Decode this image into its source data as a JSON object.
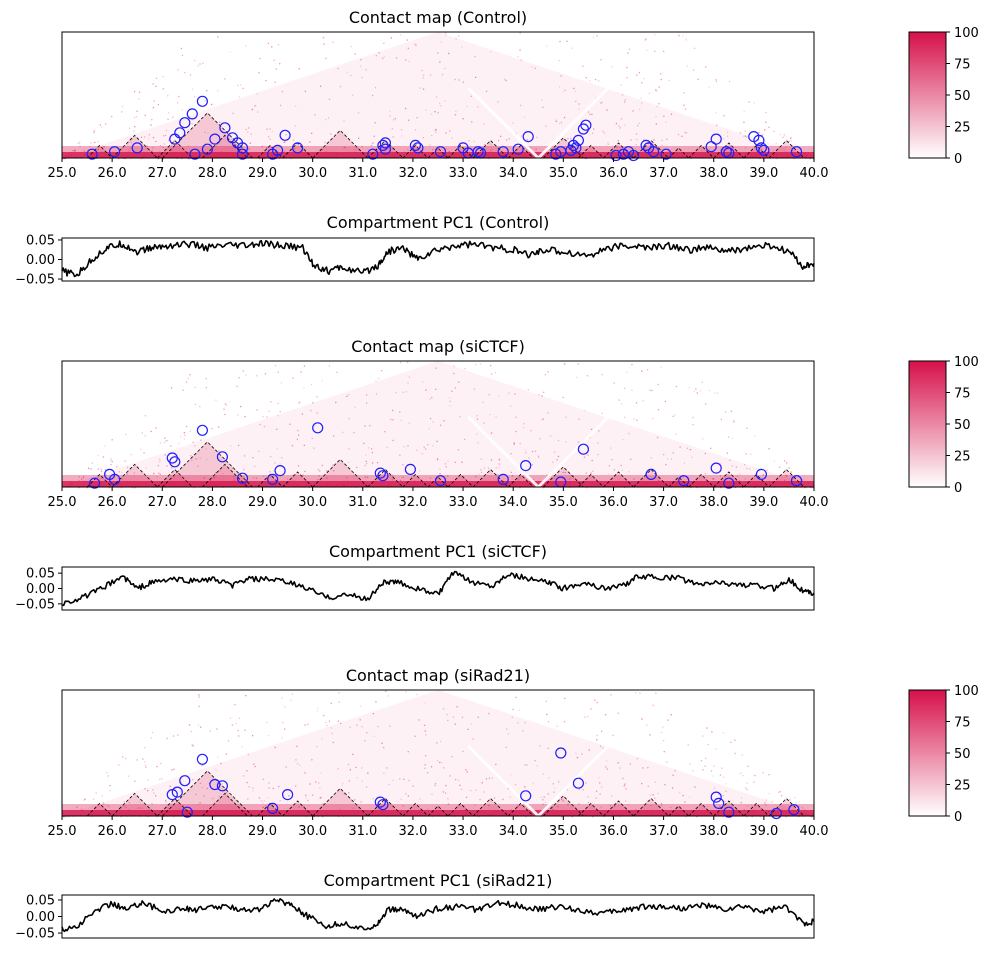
{
  "chart_data": [
    {
      "type": "heatmap",
      "title": "Contact map (Control)",
      "x_range": [
        25.0,
        40.0
      ],
      "x_ticks": [
        "25.0",
        "26.0",
        "27.0",
        "28.0",
        "29.0",
        "30.0",
        "31.0",
        "32.0",
        "33.0",
        "34.0",
        "35.0",
        "36.0",
        "37.0",
        "38.0",
        "39.0",
        "40.0"
      ],
      "colorbar": {
        "range": [
          0,
          100
        ],
        "ticks": [
          "0",
          "25",
          "50",
          "75",
          "100"
        ],
        "colors": [
          "#ffffff",
          "#d6104a"
        ]
      },
      "domains": [
        [
          25.5,
          26.0
        ],
        [
          26.0,
          26.9
        ],
        [
          26.9,
          27.6
        ],
        [
          27.0,
          28.8
        ],
        [
          27.8,
          28.7
        ],
        [
          28.9,
          29.4
        ],
        [
          29.4,
          30.0
        ],
        [
          30.0,
          31.1
        ],
        [
          31.1,
          31.8
        ],
        [
          31.8,
          32.3
        ],
        [
          32.3,
          32.7
        ],
        [
          32.7,
          33.2
        ],
        [
          33.2,
          33.9
        ],
        [
          33.9,
          34.4
        ],
        [
          34.6,
          35.4
        ],
        [
          35.3,
          35.8
        ],
        [
          35.8,
          36.4
        ],
        [
          36.4,
          37.1
        ],
        [
          37.1,
          37.5
        ],
        [
          37.5,
          38.0
        ],
        [
          38.0,
          38.6
        ],
        [
          38.6,
          39.1
        ],
        [
          39.1,
          39.8
        ]
      ],
      "loop_calls": [
        [
          25.6,
          0.03
        ],
        [
          26.05,
          0.05
        ],
        [
          26.5,
          0.08
        ],
        [
          27.25,
          0.15
        ],
        [
          27.35,
          0.2
        ],
        [
          27.45,
          0.28
        ],
        [
          27.6,
          0.35
        ],
        [
          27.8,
          0.45
        ],
        [
          27.65,
          0.03
        ],
        [
          27.9,
          0.07
        ],
        [
          28.05,
          0.15
        ],
        [
          28.25,
          0.24
        ],
        [
          28.4,
          0.16
        ],
        [
          28.5,
          0.12
        ],
        [
          28.6,
          0.08
        ],
        [
          28.6,
          0.03
        ],
        [
          29.2,
          0.03
        ],
        [
          29.3,
          0.06
        ],
        [
          29.45,
          0.18
        ],
        [
          29.7,
          0.08
        ],
        [
          31.2,
          0.03
        ],
        [
          31.4,
          0.1
        ],
        [
          31.45,
          0.12
        ],
        [
          31.45,
          0.07
        ],
        [
          32.05,
          0.1
        ],
        [
          32.1,
          0.08
        ],
        [
          32.55,
          0.05
        ],
        [
          33.0,
          0.08
        ],
        [
          33.1,
          0.04
        ],
        [
          33.3,
          0.05
        ],
        [
          33.35,
          0.04
        ],
        [
          33.8,
          0.05
        ],
        [
          34.1,
          0.07
        ],
        [
          34.3,
          0.17
        ],
        [
          34.85,
          0.03
        ],
        [
          34.95,
          0.05
        ],
        [
          35.15,
          0.06
        ],
        [
          35.2,
          0.1
        ],
        [
          35.25,
          0.08
        ],
        [
          35.3,
          0.14
        ],
        [
          35.4,
          0.23
        ],
        [
          35.45,
          0.26
        ],
        [
          36.05,
          0.02
        ],
        [
          36.2,
          0.03
        ],
        [
          36.3,
          0.05
        ],
        [
          36.4,
          0.02
        ],
        [
          36.65,
          0.1
        ],
        [
          36.7,
          0.08
        ],
        [
          36.8,
          0.05
        ],
        [
          37.05,
          0.03
        ],
        [
          37.95,
          0.09
        ],
        [
          38.05,
          0.15
        ],
        [
          38.25,
          0.05
        ],
        [
          38.3,
          0.04
        ],
        [
          38.8,
          0.17
        ],
        [
          38.9,
          0.14
        ],
        [
          38.95,
          0.08
        ],
        [
          39.0,
          0.06
        ],
        [
          39.65,
          0.05
        ]
      ]
    },
    {
      "type": "line",
      "title": "Compartment PC1 (Control)",
      "x_range": [
        25.0,
        40.0
      ],
      "ylim": [
        -0.055,
        0.055
      ],
      "y_ticks": [
        "0.05",
        "0.00",
        "−0.05"
      ],
      "profile_points": [
        [
          25.0,
          -0.03
        ],
        [
          25.3,
          -0.04
        ],
        [
          25.6,
          0.0
        ],
        [
          25.9,
          0.03
        ],
        [
          26.2,
          0.04
        ],
        [
          26.5,
          0.02
        ],
        [
          26.8,
          0.03
        ],
        [
          27.1,
          0.035
        ],
        [
          27.5,
          0.04
        ],
        [
          27.9,
          0.03
        ],
        [
          28.3,
          0.035
        ],
        [
          28.7,
          0.035
        ],
        [
          29.0,
          0.04
        ],
        [
          29.4,
          0.035
        ],
        [
          29.8,
          0.03
        ],
        [
          30.0,
          -0.01
        ],
        [
          30.3,
          -0.03
        ],
        [
          30.6,
          -0.02
        ],
        [
          31.0,
          -0.035
        ],
        [
          31.3,
          -0.015
        ],
        [
          31.5,
          0.02
        ],
        [
          31.8,
          0.03
        ],
        [
          32.1,
          0.0
        ],
        [
          32.4,
          0.02
        ],
        [
          32.8,
          0.035
        ],
        [
          33.2,
          0.04
        ],
        [
          33.6,
          0.03
        ],
        [
          34.0,
          0.025
        ],
        [
          34.3,
          0.01
        ],
        [
          34.6,
          0.025
        ],
        [
          35.0,
          0.02
        ],
        [
          35.5,
          0.01
        ],
        [
          35.9,
          0.03
        ],
        [
          36.3,
          0.035
        ],
        [
          36.7,
          0.03
        ],
        [
          37.1,
          0.035
        ],
        [
          37.5,
          0.025
        ],
        [
          37.9,
          0.03
        ],
        [
          38.3,
          0.02
        ],
        [
          38.7,
          0.03
        ],
        [
          39.1,
          0.035
        ],
        [
          39.5,
          0.02
        ],
        [
          39.8,
          -0.02
        ],
        [
          40.0,
          -0.01
        ]
      ]
    },
    {
      "type": "heatmap",
      "title": "Contact map (siCTCF)",
      "x_range": [
        25.0,
        40.0
      ],
      "x_ticks": [
        "25.0",
        "26.0",
        "27.0",
        "28.0",
        "29.0",
        "30.0",
        "31.0",
        "32.0",
        "33.0",
        "34.0",
        "35.0",
        "36.0",
        "37.0",
        "38.0",
        "39.0",
        "40.0"
      ],
      "colorbar": {
        "range": [
          0,
          100
        ],
        "ticks": [
          "0",
          "25",
          "50",
          "75",
          "100"
        ],
        "colors": [
          "#ffffff",
          "#d6104a"
        ]
      },
      "domains": [
        [
          25.5,
          26.0
        ],
        [
          26.0,
          26.9
        ],
        [
          26.9,
          27.6
        ],
        [
          27.0,
          28.8
        ],
        [
          27.8,
          28.7
        ],
        [
          28.9,
          29.4
        ],
        [
          29.4,
          30.0
        ],
        [
          30.0,
          31.1
        ],
        [
          31.1,
          31.8
        ],
        [
          31.8,
          32.3
        ],
        [
          32.3,
          32.7
        ],
        [
          32.7,
          33.2
        ],
        [
          33.2,
          33.9
        ],
        [
          33.9,
          34.4
        ],
        [
          34.6,
          35.4
        ],
        [
          35.3,
          35.8
        ],
        [
          35.8,
          36.4
        ],
        [
          36.4,
          37.1
        ],
        [
          37.1,
          37.5
        ],
        [
          37.5,
          38.0
        ],
        [
          38.0,
          38.6
        ],
        [
          38.6,
          39.1
        ],
        [
          39.1,
          39.8
        ]
      ],
      "loop_calls": [
        [
          25.65,
          0.03
        ],
        [
          25.95,
          0.1
        ],
        [
          26.05,
          0.06
        ],
        [
          27.2,
          0.23
        ],
        [
          27.25,
          0.2
        ],
        [
          27.8,
          0.45
        ],
        [
          28.2,
          0.24
        ],
        [
          28.6,
          0.07
        ],
        [
          29.2,
          0.06
        ],
        [
          29.35,
          0.13
        ],
        [
          30.1,
          0.47
        ],
        [
          31.35,
          0.11
        ],
        [
          31.4,
          0.09
        ],
        [
          31.95,
          0.14
        ],
        [
          32.55,
          0.05
        ],
        [
          33.8,
          0.06
        ],
        [
          34.25,
          0.17
        ],
        [
          34.95,
          0.04
        ],
        [
          35.4,
          0.3
        ],
        [
          36.75,
          0.1
        ],
        [
          37.4,
          0.05
        ],
        [
          38.05,
          0.15
        ],
        [
          38.3,
          0.03
        ],
        [
          38.95,
          0.1
        ],
        [
          39.65,
          0.05
        ]
      ]
    },
    {
      "type": "line",
      "title": "Compartment PC1 (siCTCF)",
      "x_range": [
        25.0,
        40.0
      ],
      "ylim": [
        -0.07,
        0.07
      ],
      "y_ticks": [
        "0.05",
        "0.00",
        "−0.05"
      ],
      "profile_points": [
        [
          25.0,
          -0.05
        ],
        [
          25.4,
          -0.03
        ],
        [
          25.8,
          0.0
        ],
        [
          26.2,
          0.04
        ],
        [
          26.5,
          0.0
        ],
        [
          26.8,
          0.02
        ],
        [
          27.2,
          0.03
        ],
        [
          27.6,
          0.025
        ],
        [
          28.0,
          0.03
        ],
        [
          28.4,
          0.01
        ],
        [
          28.7,
          0.03
        ],
        [
          29.1,
          0.03
        ],
        [
          29.5,
          0.02
        ],
        [
          29.9,
          0.0
        ],
        [
          30.3,
          -0.03
        ],
        [
          30.7,
          -0.02
        ],
        [
          31.1,
          -0.035
        ],
        [
          31.4,
          0.02
        ],
        [
          31.7,
          0.02
        ],
        [
          32.1,
          0.0
        ],
        [
          32.5,
          -0.02
        ],
        [
          32.8,
          0.05
        ],
        [
          33.2,
          0.02
        ],
        [
          33.6,
          0.01
        ],
        [
          33.9,
          0.05
        ],
        [
          34.3,
          0.03
        ],
        [
          34.7,
          0.02
        ],
        [
          35.0,
          0.0
        ],
        [
          35.4,
          0.02
        ],
        [
          35.8,
          0.0
        ],
        [
          36.2,
          0.01
        ],
        [
          36.5,
          0.04
        ],
        [
          36.9,
          0.035
        ],
        [
          37.3,
          0.035
        ],
        [
          37.7,
          0.01
        ],
        [
          38.0,
          0.02
        ],
        [
          38.4,
          0.015
        ],
        [
          38.8,
          0.01
        ],
        [
          39.2,
          0.0
        ],
        [
          39.5,
          0.03
        ],
        [
          39.8,
          -0.01
        ],
        [
          40.0,
          -0.015
        ]
      ]
    },
    {
      "type": "heatmap",
      "title": "Contact map (siRad21)",
      "x_range": [
        25.0,
        40.0
      ],
      "x_ticks": [
        "25.0",
        "26.0",
        "27.0",
        "28.0",
        "29.0",
        "30.0",
        "31.0",
        "32.0",
        "33.0",
        "34.0",
        "35.0",
        "36.0",
        "37.0",
        "38.0",
        "39.0",
        "40.0"
      ],
      "colorbar": {
        "range": [
          0,
          100
        ],
        "ticks": [
          "0",
          "25",
          "50",
          "75",
          "100"
        ],
        "colors": [
          "#ffffff",
          "#d6104a"
        ]
      },
      "domains": [
        [
          25.5,
          26.0
        ],
        [
          26.0,
          26.9
        ],
        [
          26.9,
          27.6
        ],
        [
          27.0,
          28.8
        ],
        [
          27.8,
          28.7
        ],
        [
          28.9,
          29.4
        ],
        [
          29.4,
          30.0
        ],
        [
          30.0,
          31.1
        ],
        [
          31.1,
          31.8
        ],
        [
          31.8,
          32.3
        ],
        [
          32.3,
          32.7
        ],
        [
          32.7,
          33.2
        ],
        [
          33.2,
          33.9
        ],
        [
          33.9,
          34.4
        ],
        [
          34.6,
          35.4
        ],
        [
          35.3,
          35.8
        ],
        [
          35.8,
          36.4
        ],
        [
          36.4,
          37.1
        ],
        [
          37.1,
          37.5
        ],
        [
          37.5,
          38.0
        ],
        [
          38.0,
          38.6
        ],
        [
          38.6,
          39.1
        ],
        [
          39.1,
          39.8
        ]
      ],
      "loop_calls": [
        [
          27.2,
          0.17
        ],
        [
          27.3,
          0.19
        ],
        [
          27.45,
          0.28
        ],
        [
          27.5,
          0.03
        ],
        [
          27.8,
          0.45
        ],
        [
          28.05,
          0.25
        ],
        [
          28.2,
          0.24
        ],
        [
          29.2,
          0.06
        ],
        [
          29.5,
          0.17
        ],
        [
          31.35,
          0.11
        ],
        [
          31.4,
          0.09
        ],
        [
          34.25,
          0.16
        ],
        [
          34.95,
          0.5
        ],
        [
          35.3,
          0.26
        ],
        [
          38.05,
          0.15
        ],
        [
          38.1,
          0.1
        ],
        [
          38.3,
          0.03
        ],
        [
          39.25,
          0.02
        ],
        [
          39.6,
          0.05
        ]
      ]
    },
    {
      "type": "line",
      "title": "Compartment PC1 (siRad21)",
      "x_range": [
        25.0,
        40.0
      ],
      "ylim": [
        -0.065,
        0.065
      ],
      "y_ticks": [
        "0.05",
        "0.00",
        "−0.05"
      ],
      "profile_points": [
        [
          25.0,
          -0.04
        ],
        [
          25.3,
          -0.03
        ],
        [
          25.7,
          0.02
        ],
        [
          26.0,
          0.04
        ],
        [
          26.3,
          0.02
        ],
        [
          26.6,
          0.045
        ],
        [
          27.0,
          0.015
        ],
        [
          27.4,
          0.025
        ],
        [
          27.7,
          0.02
        ],
        [
          28.1,
          0.03
        ],
        [
          28.5,
          0.025
        ],
        [
          28.9,
          0.02
        ],
        [
          29.3,
          0.05
        ],
        [
          29.6,
          0.035
        ],
        [
          29.9,
          0.0
        ],
        [
          30.3,
          -0.03
        ],
        [
          30.6,
          -0.02
        ],
        [
          31.0,
          -0.04
        ],
        [
          31.3,
          -0.02
        ],
        [
          31.5,
          0.02
        ],
        [
          31.8,
          0.02
        ],
        [
          32.1,
          0.0
        ],
        [
          32.5,
          0.025
        ],
        [
          32.9,
          0.03
        ],
        [
          33.3,
          0.02
        ],
        [
          33.7,
          0.04
        ],
        [
          34.1,
          0.035
        ],
        [
          34.5,
          0.02
        ],
        [
          34.9,
          0.03
        ],
        [
          35.3,
          0.02
        ],
        [
          35.8,
          0.01
        ],
        [
          36.2,
          0.02
        ],
        [
          36.6,
          0.03
        ],
        [
          37.0,
          0.03
        ],
        [
          37.4,
          0.025
        ],
        [
          37.8,
          0.035
        ],
        [
          38.2,
          0.02
        ],
        [
          38.6,
          0.03
        ],
        [
          39.0,
          0.015
        ],
        [
          39.4,
          0.03
        ],
        [
          39.8,
          -0.02
        ],
        [
          40.0,
          -0.015
        ]
      ]
    }
  ]
}
